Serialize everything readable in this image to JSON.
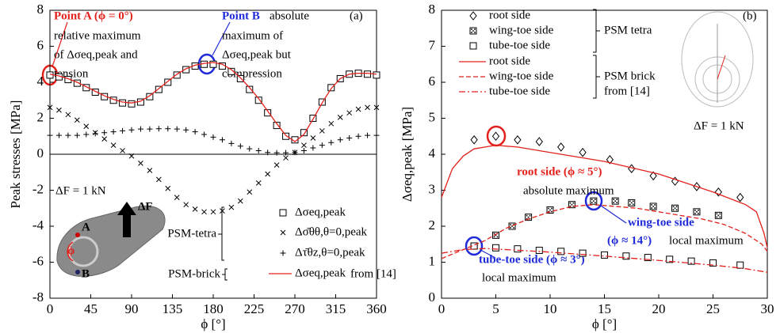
{
  "chart_data": [
    {
      "type": "line",
      "xlabel": "ϕ [°]",
      "ylabel": "Peak stresses [MPa]",
      "xlim": [
        0,
        360
      ],
      "xticks": [
        0,
        45,
        90,
        135,
        180,
        225,
        270,
        315,
        360
      ],
      "ylim": [
        -8,
        8
      ],
      "yticks": [
        -8,
        -6,
        -4,
        -2,
        0,
        2,
        4,
        6,
        8
      ],
      "x": [
        0,
        10,
        20,
        30,
        40,
        50,
        60,
        70,
        80,
        90,
        100,
        110,
        120,
        130,
        140,
        150,
        160,
        170,
        180,
        190,
        200,
        210,
        220,
        230,
        240,
        250,
        260,
        270,
        280,
        290,
        300,
        310,
        320,
        330,
        340,
        350,
        360
      ],
      "series": [
        {
          "name": "Δσeq,peak",
          "color": "#000000",
          "marker": "square",
          "values": [
            4.4,
            4.3,
            4.15,
            3.95,
            3.7,
            3.45,
            3.2,
            3.0,
            2.85,
            2.8,
            2.9,
            3.2,
            3.6,
            4.0,
            4.4,
            4.7,
            4.9,
            5.0,
            5.0,
            4.9,
            4.6,
            4.2,
            3.6,
            3.0,
            2.3,
            1.6,
            1.0,
            0.8,
            1.2,
            2.0,
            2.9,
            3.7,
            4.2,
            4.45,
            4.5,
            4.45,
            4.4
          ]
        },
        {
          "name": "Δσ̄θθ,θ=0,peak",
          "color": "#000000",
          "marker": "x",
          "values": [
            2.6,
            2.45,
            2.2,
            1.9,
            1.55,
            1.2,
            0.85,
            0.5,
            0.2,
            -0.1,
            -0.5,
            -0.9,
            -1.4,
            -1.9,
            -2.4,
            -2.8,
            -3.05,
            -3.2,
            -3.2,
            -3.15,
            -2.95,
            -2.6,
            -2.1,
            -1.6,
            -1.1,
            -0.6,
            -0.2,
            0.1,
            0.5,
            0.9,
            1.3,
            1.7,
            2.05,
            2.3,
            2.5,
            2.6,
            2.6
          ]
        },
        {
          "name": "Δτ̄θz,θ=0,peak",
          "color": "#000000",
          "marker": "plus",
          "values": [
            1.05,
            1.05,
            1.05,
            1.05,
            1.1,
            1.15,
            1.2,
            1.25,
            1.3,
            1.35,
            1.4,
            1.4,
            1.42,
            1.42,
            1.4,
            1.35,
            1.25,
            1.1,
            0.95,
            0.8,
            0.6,
            0.45,
            0.3,
            0.2,
            0.1,
            0.08,
            0.08,
            0.1,
            0.2,
            0.35,
            0.5,
            0.65,
            0.8,
            0.9,
            1.0,
            1.05,
            1.05
          ]
        },
        {
          "name": "Δσeq,peak",
          "color": "#e3211c",
          "marker": "line",
          "dash": "solid",
          "values": [
            4.45,
            4.35,
            4.2,
            4.0,
            3.75,
            3.5,
            3.25,
            3.05,
            2.9,
            2.85,
            2.95,
            3.25,
            3.65,
            4.05,
            4.45,
            4.75,
            4.95,
            5.05,
            5.1,
            5.0,
            4.7,
            4.25,
            3.7,
            3.1,
            2.4,
            1.7,
            1.05,
            0.7,
            1.1,
            1.95,
            2.85,
            3.65,
            4.2,
            4.45,
            4.5,
            4.5,
            4.45
          ]
        }
      ],
      "annotations": [
        "Point A (ϕ = 0°)",
        "relative maximum",
        "of Δσeq,peak and",
        "tension",
        "Point B",
        "absolute",
        "maximum of",
        "Δσeq,peak but",
        "compression",
        "(a)",
        "ΔF = 1 kN",
        "PSM-tetra",
        "PSM-brick",
        "from [14]",
        "A",
        "B",
        "ΔF",
        "ϕ"
      ]
    },
    {
      "type": "line",
      "xlabel": "ϕ [°]",
      "ylabel": "Δσeq,peak [MPa]",
      "xlim": [
        0,
        30
      ],
      "xticks": [
        0,
        5,
        10,
        15,
        20,
        25,
        30
      ],
      "ylim": [
        0,
        8
      ],
      "yticks": [
        0,
        1,
        2,
        3,
        4,
        5,
        6,
        7,
        8
      ],
      "series": [
        {
          "name": "root side",
          "color": "#000000",
          "marker": "diamond",
          "x": [
            3,
            5,
            7,
            9,
            11,
            13,
            15.5,
            17.5,
            19.5,
            21.5,
            23.5,
            25.5,
            27.5
          ],
          "values": [
            4.4,
            4.5,
            4.4,
            4.35,
            4.2,
            4.05,
            3.85,
            3.6,
            3.4,
            3.25,
            3.1,
            2.95,
            2.8
          ]
        },
        {
          "name": "wing-toe side",
          "color": "#000000",
          "marker": "square-dot",
          "x": [
            3,
            5,
            6.5,
            8,
            10,
            12,
            14,
            16,
            17.5,
            19.5,
            21.5,
            23.5,
            25.5
          ],
          "values": [
            1.45,
            1.75,
            2.0,
            2.25,
            2.45,
            2.6,
            2.7,
            2.7,
            2.65,
            2.55,
            2.5,
            2.4,
            2.3
          ]
        },
        {
          "name": "tube-toe side",
          "color": "#000000",
          "marker": "square",
          "x": [
            3,
            5,
            7,
            9,
            11,
            13,
            15,
            17,
            19,
            21,
            23,
            25,
            27.5
          ],
          "values": [
            1.45,
            1.4,
            1.37,
            1.33,
            1.3,
            1.25,
            1.2,
            1.17,
            1.13,
            1.08,
            1.03,
            0.98,
            0.92
          ]
        },
        {
          "name": "root side",
          "color": "#e3211c",
          "marker": "line",
          "dash": "solid",
          "x": [
            0,
            1,
            2,
            3,
            4,
            5,
            7,
            10,
            15,
            20,
            25,
            28,
            29,
            29.7,
            30
          ],
          "values": [
            2.8,
            3.6,
            3.95,
            4.15,
            4.2,
            4.25,
            4.2,
            4.05,
            3.8,
            3.45,
            2.95,
            2.6,
            2.4,
            1.8,
            1.4
          ]
        },
        {
          "name": "wing-toe side",
          "color": "#e3211c",
          "marker": "line",
          "dash": "dashed",
          "x": [
            0,
            2,
            4,
            6,
            8,
            10,
            12,
            14,
            16,
            18,
            20,
            22,
            24,
            26,
            28,
            29.5,
            30
          ],
          "values": [
            1.1,
            1.35,
            1.6,
            1.95,
            2.2,
            2.4,
            2.55,
            2.6,
            2.55,
            2.5,
            2.4,
            2.3,
            2.2,
            2.05,
            1.8,
            1.5,
            1.3
          ]
        },
        {
          "name": "tube-toe side",
          "color": "#e3211c",
          "marker": "line",
          "dash": "dashdot",
          "x": [
            0,
            2,
            4,
            6,
            10,
            15,
            20,
            25,
            28,
            30
          ],
          "values": [
            1.25,
            1.35,
            1.38,
            1.35,
            1.28,
            1.17,
            1.05,
            0.92,
            0.82,
            0.72
          ]
        }
      ],
      "annotations": [
        "(b)",
        "ΔF = 1 kN",
        "root side (ϕ ≈ 5°)",
        "absolute maximum",
        "wing-toe side",
        "(ϕ ≈ 14°)",
        "local maximum",
        "tube-toe side (ϕ ≈ 3°)",
        "local maximum",
        "PSM tetra",
        "PSM brick",
        "from [14]"
      ]
    }
  ]
}
